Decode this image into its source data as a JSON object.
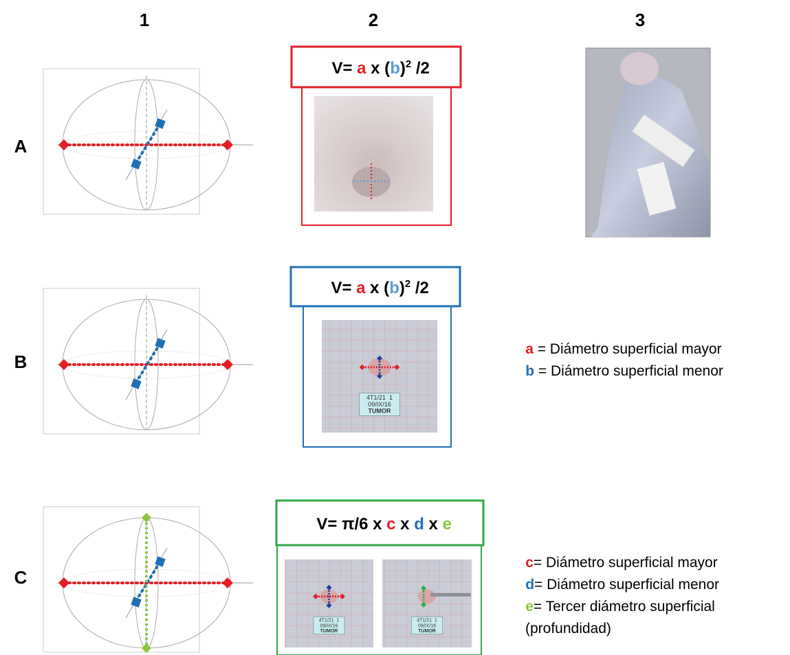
{
  "columns": [
    "1",
    "2",
    "3"
  ],
  "rows": [
    "A",
    "B",
    "C"
  ],
  "formulas": [
    {
      "parts": [
        "V= ",
        "a",
        " x (",
        "b",
        ")",
        "2",
        " /2"
      ]
    },
    {
      "parts": [
        "V= ",
        "a",
        " x (",
        "b",
        ")",
        "2",
        " /2"
      ]
    },
    {
      "parts": [
        "V= π/6 x ",
        "c",
        " x ",
        "d",
        " x ",
        "e"
      ]
    }
  ],
  "photo_labels": [
    "4T1/21  1",
    "09/IX/16",
    "TUMOR"
  ],
  "legend_b": [
    {
      "key": "a",
      "text": " = Diámetro superficial mayor"
    },
    {
      "key": "b",
      "text": " = Diámetro superficial menor"
    }
  ],
  "legend_c": [
    {
      "key": "c",
      "text": "= Diámetro superficial mayor"
    },
    {
      "key": "d",
      "text": "= Diámetro superficial menor"
    },
    {
      "key": "e",
      "text": "= Tercer diámetro superficial"
    },
    {
      "text": "(profundidad)"
    }
  ]
}
